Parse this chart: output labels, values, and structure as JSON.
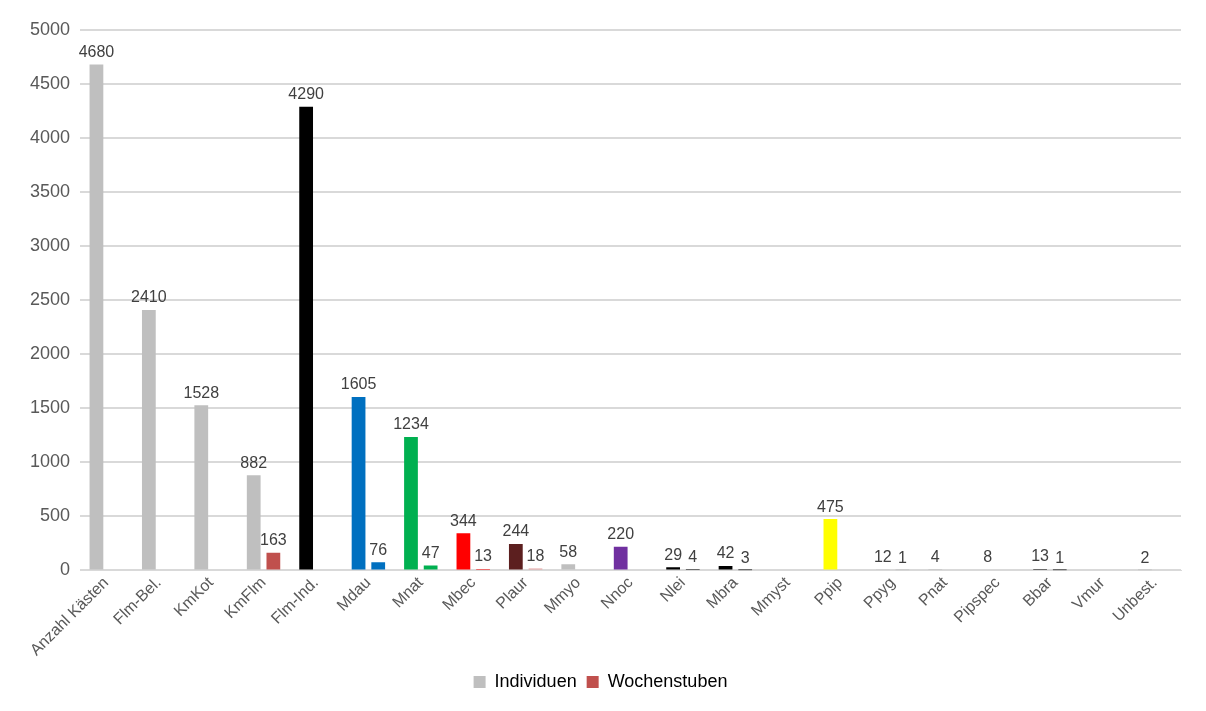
{
  "chart_data": {
    "type": "bar",
    "categories": [
      "Anzahl Kästen",
      "Flm-Bel.",
      "KmKot",
      "KmFlm",
      "Flm-Ind.",
      "Mdau",
      "Mnat",
      "Mbec",
      "Plaur",
      "Mmyo",
      "Nnoc",
      "Nlei",
      "Mbra",
      "Mmyst",
      "Ppip",
      "Ppyg",
      "Pnat",
      "Pipspec",
      "Bbar",
      "Vmur",
      "Unbest."
    ],
    "series": [
      {
        "name": "Individuen",
        "color": "#bfbfbf",
        "colors": [
          "#bfbfbf",
          "#bfbfbf",
          "#bfbfbf",
          "#bfbfbf",
          "#000000",
          "#0070c0",
          "#00b050",
          "#ff0000",
          "#5c1f1f",
          "#bfbfbf",
          "#7030a0",
          "#000000",
          "#000000",
          "#bfbfbf",
          "#ffff00",
          "#bfbfbf",
          "#bfbfbf",
          "#000000",
          "#000000",
          "#bfbfbf",
          "#bfbfbf"
        ],
        "values": [
          4680,
          2410,
          1528,
          882,
          4290,
          1605,
          1234,
          344,
          244,
          58,
          220,
          29,
          42,
          null,
          475,
          12,
          4,
          8,
          13,
          null,
          2
        ]
      },
      {
        "name": "Wochenstuben",
        "color": "#c0504d",
        "colors": [
          "#c0504d",
          "#c0504d",
          "#c0504d",
          "#c0504d",
          "#c0504d",
          "#0070c0",
          "#00b050",
          "#ff0000",
          "#e6a0a0",
          "#c0504d",
          "#c0504d",
          "#000000",
          "#000000",
          "#c0504d",
          "#c0504d",
          "#bfbfbf",
          "#c0504d",
          "#c0504d",
          "#000000",
          "#c0504d",
          "#c0504d"
        ],
        "values": [
          null,
          null,
          null,
          163,
          null,
          76,
          47,
          13,
          18,
          null,
          null,
          4,
          3,
          null,
          null,
          1,
          null,
          null,
          1,
          null,
          null
        ]
      }
    ],
    "ylim": [
      0,
      5000
    ],
    "yticks": [
      0,
      500,
      1000,
      1500,
      2000,
      2500,
      3000,
      3500,
      4000,
      4500,
      5000
    ],
    "grid": "y",
    "legend": "bottom",
    "data_labels": true
  }
}
